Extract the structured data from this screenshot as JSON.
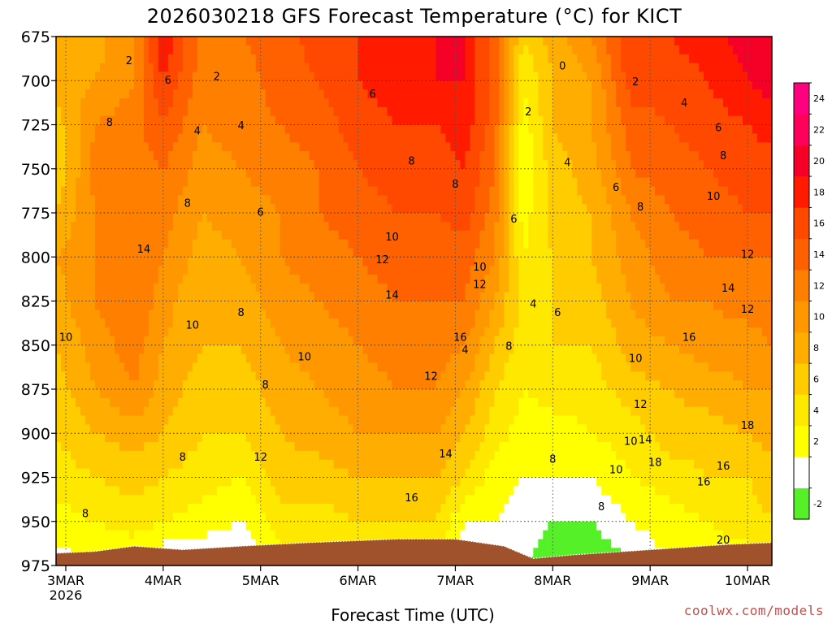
{
  "chart_data": {
    "type": "heatmap",
    "subtype": "time-height filled contour",
    "title": "2026030218 GFS Forecast Temperature (°C) for KICT",
    "xlabel": "Forecast Time (UTC)",
    "ylabel": "",
    "credit": "coolwx.com/models",
    "y_axis": {
      "units": "hPa",
      "range": [
        975,
        675
      ],
      "ticks": [
        "675",
        "700",
        "725",
        "750",
        "775",
        "800",
        "825",
        "850",
        "875",
        "900",
        "925",
        "950",
        "975"
      ]
    },
    "x_axis": {
      "units": "days from 3MAR 2026",
      "range": [
        -0.1,
        7.25
      ],
      "ticks": [
        {
          "day": 0,
          "label": "3MAR",
          "sub": "2026"
        },
        {
          "day": 1,
          "label": "4MAR",
          "sub": ""
        },
        {
          "day": 2,
          "label": "5MAR",
          "sub": ""
        },
        {
          "day": 3,
          "label": "6MAR",
          "sub": ""
        },
        {
          "day": 4,
          "label": "7MAR",
          "sub": ""
        },
        {
          "day": 5,
          "label": "8MAR",
          "sub": ""
        },
        {
          "day": 6,
          "label": "9MAR",
          "sub": ""
        },
        {
          "day": 7,
          "label": "10MAR",
          "sub": ""
        }
      ]
    },
    "colorbar": {
      "levels": [
        {
          "value": "-2",
          "color": "#56f028"
        },
        {
          "value": "",
          "color": "#ffffff"
        },
        {
          "value": "2",
          "color": "#ffff00"
        },
        {
          "value": "4",
          "color": "#ffe800"
        },
        {
          "value": "6",
          "color": "#ffcc00"
        },
        {
          "value": "8",
          "color": "#ffae00"
        },
        {
          "value": "10",
          "color": "#ff9800"
        },
        {
          "value": "12",
          "color": "#ff7f00"
        },
        {
          "value": "14",
          "color": "#ff6000"
        },
        {
          "value": "16",
          "color": "#ff4800"
        },
        {
          "value": "18",
          "color": "#ff1a00"
        },
        {
          "value": "20",
          "color": "#f50027"
        },
        {
          "value": "22",
          "color": "#ff005a"
        },
        {
          "value": "24",
          "color": "#ff0080"
        }
      ]
    },
    "terrain_color": "#a0522d",
    "surface_pressure": [
      {
        "day": -0.1,
        "p": 968
      },
      {
        "day": 0.3,
        "p": 967
      },
      {
        "day": 0.7,
        "p": 964
      },
      {
        "day": 1.2,
        "p": 966
      },
      {
        "day": 1.8,
        "p": 964
      },
      {
        "day": 2.5,
        "p": 962
      },
      {
        "day": 3.4,
        "p": 960
      },
      {
        "day": 4.0,
        "p": 960
      },
      {
        "day": 4.5,
        "p": 964
      },
      {
        "day": 4.8,
        "p": 971
      },
      {
        "day": 5.2,
        "p": 969
      },
      {
        "day": 6.0,
        "p": 966
      },
      {
        "day": 6.8,
        "p": 963
      },
      {
        "day": 7.25,
        "p": 962
      }
    ],
    "temperature_profiles": [
      {
        "day": -0.1,
        "temps": [
          1,
          3,
          5,
          6,
          7,
          8,
          9,
          10,
          8,
          6,
          7,
          9,
          10
        ]
      },
      {
        "day": 0.3,
        "temps": [
          2,
          4,
          6,
          8,
          10,
          11,
          12,
          12,
          12,
          13,
          12,
          10,
          9
        ]
      },
      {
        "day": 0.7,
        "temps": [
          2,
          5,
          7,
          9,
          12,
          13,
          14,
          14,
          13,
          13,
          13,
          12,
          12
        ]
      },
      {
        "day": 1.0,
        "temps": [
          0,
          4,
          6,
          8,
          9,
          10,
          11,
          12,
          13,
          14,
          16,
          18,
          20
        ]
      },
      {
        "day": 1.4,
        "temps": [
          0,
          3,
          5,
          6,
          7,
          8,
          8,
          9,
          10,
          11,
          12,
          13,
          13
        ]
      },
      {
        "day": 1.8,
        "temps": [
          0,
          2,
          4,
          6,
          7,
          8,
          9,
          10,
          11,
          12,
          13,
          13,
          14
        ]
      },
      {
        "day": 2.2,
        "temps": [
          3,
          5,
          7,
          8,
          9,
          10,
          11,
          12,
          12,
          13,
          14,
          15,
          15
        ]
      },
      {
        "day": 2.6,
        "temps": [
          3,
          5,
          7,
          9,
          10,
          11,
          12,
          13,
          14,
          14,
          15,
          16,
          17
        ]
      },
      {
        "day": 3.0,
        "temps": [
          4,
          6,
          8,
          10,
          11,
          12,
          13,
          14,
          15,
          16,
          17,
          18,
          18
        ]
      },
      {
        "day": 3.4,
        "temps": [
          4,
          6,
          8,
          10,
          12,
          13,
          14,
          15,
          16,
          17,
          18,
          19,
          19
        ]
      },
      {
        "day": 3.8,
        "temps": [
          3,
          6,
          8,
          10,
          12,
          13,
          14,
          15,
          16,
          17,
          18,
          20,
          20
        ]
      },
      {
        "day": 4.1,
        "temps": [
          0,
          2,
          6,
          8,
          10,
          12,
          14,
          15,
          17,
          18,
          19,
          20,
          20
        ]
      },
      {
        "day": 4.4,
        "temps": [
          0,
          2,
          3,
          5,
          6,
          8,
          10,
          12,
          13,
          14,
          15,
          15,
          15
        ]
      },
      {
        "day": 4.7,
        "temps": [
          0,
          1,
          2,
          3,
          4,
          5,
          5,
          4,
          3,
          2,
          3,
          4,
          6
        ]
      },
      {
        "day": 5.0,
        "temps": [
          -1,
          0,
          2,
          3,
          5,
          6,
          6,
          6,
          7,
          7,
          8,
          8,
          9
        ]
      },
      {
        "day": 5.4,
        "temps": [
          -2,
          0,
          2,
          4,
          5,
          6,
          7,
          8,
          8,
          9,
          10,
          10,
          12
        ]
      },
      {
        "day": 5.8,
        "temps": [
          0,
          2,
          4,
          5,
          7,
          9,
          10,
          11,
          12,
          14,
          15,
          17,
          18
        ]
      },
      {
        "day": 6.2,
        "temps": [
          2,
          3,
          5,
          7,
          8,
          10,
          12,
          13,
          14,
          15,
          16,
          17,
          18
        ]
      },
      {
        "day": 6.6,
        "temps": [
          3,
          4,
          6,
          7,
          9,
          11,
          12,
          14,
          15,
          16,
          17,
          18,
          19
        ]
      },
      {
        "day": 7.0,
        "temps": [
          3,
          5,
          6,
          8,
          10,
          11,
          13,
          14,
          16,
          17,
          18,
          20,
          21
        ]
      },
      {
        "day": 7.25,
        "temps": [
          4,
          6,
          7,
          9,
          10,
          12,
          13,
          14,
          16,
          17,
          19,
          21,
          22
        ]
      }
    ],
    "contour_labels": [
      {
        "text": "2",
        "day": 0.65,
        "p": 689
      },
      {
        "text": "2",
        "day": 1.55,
        "p": 698
      },
      {
        "text": "2",
        "day": 4.75,
        "p": 718
      },
      {
        "text": "2",
        "day": 5.85,
        "p": 701
      },
      {
        "text": "0",
        "day": 5.1,
        "p": 692
      },
      {
        "text": "4",
        "day": 1.35,
        "p": 729
      },
      {
        "text": "4",
        "day": 1.8,
        "p": 726
      },
      {
        "text": "4",
        "day": 5.15,
        "p": 747
      },
      {
        "text": "4",
        "day": 6.35,
        "p": 713
      },
      {
        "text": "4",
        "day": 4.8,
        "p": 827
      },
      {
        "text": "4",
        "day": 4.1,
        "p": 853
      },
      {
        "text": "6",
        "day": 1.05,
        "p": 700
      },
      {
        "text": "6",
        "day": 3.15,
        "p": 708
      },
      {
        "text": "6",
        "day": 2.0,
        "p": 775
      },
      {
        "text": "6",
        "day": 4.6,
        "p": 779
      },
      {
        "text": "6",
        "day": 5.05,
        "p": 832
      },
      {
        "text": "6",
        "day": 5.65,
        "p": 761
      },
      {
        "text": "6",
        "day": 6.7,
        "p": 727
      },
      {
        "text": "8",
        "day": 0.45,
        "p": 724
      },
      {
        "text": "8",
        "day": 1.25,
        "p": 770
      },
      {
        "text": "8",
        "day": 3.55,
        "p": 746
      },
      {
        "text": "8",
        "day": 4.0,
        "p": 759
      },
      {
        "text": "8",
        "day": 1.8,
        "p": 832
      },
      {
        "text": "8",
        "day": 2.05,
        "p": 873
      },
      {
        "text": "8",
        "day": 1.2,
        "p": 914
      },
      {
        "text": "8",
        "day": 0.2,
        "p": 946
      },
      {
        "text": "8",
        "day": 4.55,
        "p": 851
      },
      {
        "text": "8",
        "day": 5.0,
        "p": 915
      },
      {
        "text": "8",
        "day": 5.5,
        "p": 942
      },
      {
        "text": "8",
        "day": 5.9,
        "p": 772
      },
      {
        "text": "8",
        "day": 6.75,
        "p": 743
      },
      {
        "text": "10",
        "day": 0.0,
        "p": 846
      },
      {
        "text": "10",
        "day": 1.3,
        "p": 839
      },
      {
        "text": "10",
        "day": 2.45,
        "p": 857
      },
      {
        "text": "10",
        "day": 3.35,
        "p": 789
      },
      {
        "text": "10",
        "day": 4.25,
        "p": 806
      },
      {
        "text": "10",
        "day": 5.85,
        "p": 858
      },
      {
        "text": "10",
        "day": 5.8,
        "p": 905
      },
      {
        "text": "10",
        "day": 5.65,
        "p": 921
      },
      {
        "text": "10",
        "day": 6.65,
        "p": 766
      },
      {
        "text": "12",
        "day": 3.25,
        "p": 802
      },
      {
        "text": "12",
        "day": 4.25,
        "p": 816
      },
      {
        "text": "12",
        "day": 3.75,
        "p": 868
      },
      {
        "text": "12",
        "day": 2.0,
        "p": 914
      },
      {
        "text": "12",
        "day": 5.9,
        "p": 884
      },
      {
        "text": "12",
        "day": 7.0,
        "p": 799
      },
      {
        "text": "12",
        "day": 7.0,
        "p": 830
      },
      {
        "text": "14",
        "day": 0.8,
        "p": 796
      },
      {
        "text": "14",
        "day": 3.35,
        "p": 822
      },
      {
        "text": "14",
        "day": 3.9,
        "p": 912
      },
      {
        "text": "14",
        "day": 5.95,
        "p": 904
      },
      {
        "text": "14",
        "day": 6.8,
        "p": 818
      },
      {
        "text": "16",
        "day": 4.05,
        "p": 846
      },
      {
        "text": "16",
        "day": 3.55,
        "p": 937
      },
      {
        "text": "16",
        "day": 6.4,
        "p": 846
      },
      {
        "text": "16",
        "day": 6.55,
        "p": 928
      },
      {
        "text": "16",
        "day": 6.75,
        "p": 919
      },
      {
        "text": "18",
        "day": 6.05,
        "p": 917
      },
      {
        "text": "18",
        "day": 7.0,
        "p": 896
      },
      {
        "text": "20",
        "day": 6.75,
        "p": 961
      }
    ]
  }
}
